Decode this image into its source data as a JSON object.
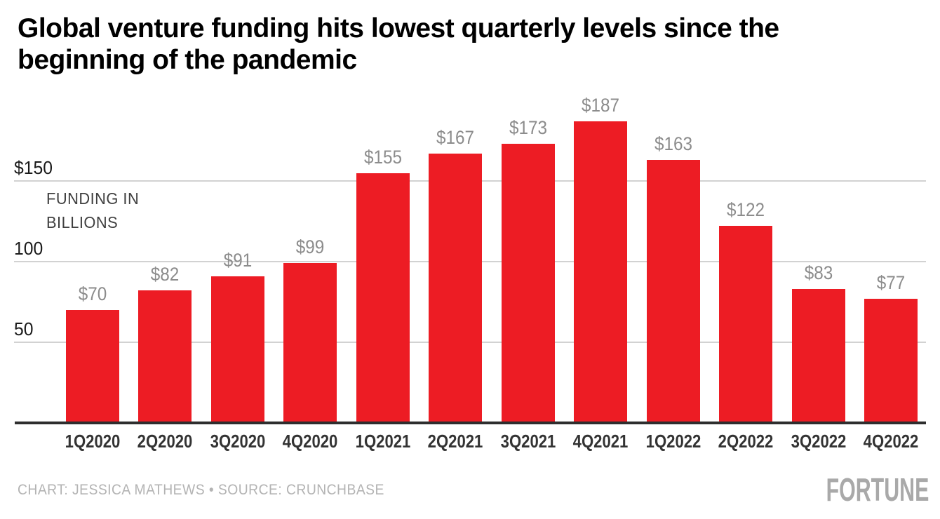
{
  "title": {
    "line1": "Global venture funding hits lowest quarterly levels since the",
    "line2": "beginning of the pandemic"
  },
  "y_axis": {
    "ticks": [
      {
        "label": "$150",
        "value": 150
      },
      {
        "label": "100",
        "value": 100
      },
      {
        "label": "50",
        "value": 50
      }
    ],
    "annotation_line1": "FUNDING IN",
    "annotation_line2": "BILLIONS"
  },
  "chart_data": {
    "type": "bar",
    "title": "Global venture funding hits lowest quarterly levels since the beginning of the pandemic",
    "categories": [
      "1Q2020",
      "2Q2020",
      "3Q2020",
      "4Q2020",
      "1Q2021",
      "2Q2021",
      "3Q2021",
      "4Q2021",
      "1Q2022",
      "2Q2022",
      "3Q2022",
      "4Q2022"
    ],
    "values": [
      70,
      82,
      91,
      99,
      155,
      167,
      173,
      187,
      163,
      122,
      83,
      77
    ],
    "value_labels": [
      "$70",
      "$82",
      "$91",
      "$99",
      "$155",
      "$167",
      "$173",
      "$187",
      "$163",
      "$122",
      "$83",
      "$77"
    ],
    "xlabel": "",
    "ylabel": "FUNDING IN BILLIONS",
    "unit": "USD billions",
    "ylim": [
      0,
      200
    ],
    "gridlines_at": [
      50,
      100,
      150
    ],
    "grid_on": true,
    "legend": "none",
    "bar_color": "#ED1C24",
    "value_label_color": "#8C8C8C",
    "gridline_color": "#D2D2D2",
    "baseline_color": "#2E2E2E"
  },
  "footer": {
    "credit": "CHART: JESSICA MATHEWS • SOURCE: CRUNCHBASE",
    "logo": "FORTUNE"
  }
}
